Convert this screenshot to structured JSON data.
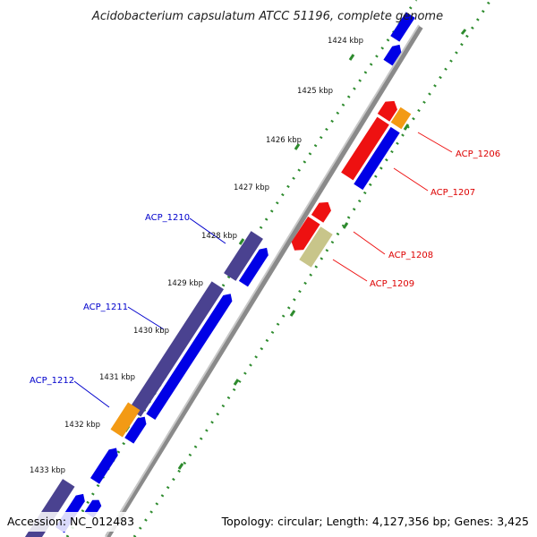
{
  "title": "Acidobacterium capsulatum ATCC 51196, complete genome",
  "footer": {
    "accession": "Accession: NC_012483",
    "summary": "Topology: circular; Length: 4,127,356 bp; Genes: 3,425"
  },
  "colors": {
    "backbone": "#8a8a8a",
    "tick_dots": "#2e8b2e",
    "blue_gene": "#0000e6",
    "purple_gene": "#4a4290",
    "red_gene": "#ee1111",
    "orange_gene": "#f39a14",
    "khaki_gene": "#c8c58a",
    "label_blue": "#0000cc",
    "label_red": "#dd0000"
  },
  "kbp_ticks": [
    "1424 kbp",
    "1425 kbp",
    "1426 kbp",
    "1427 kbp",
    "1428 kbp",
    "1429 kbp",
    "1430 kbp",
    "1431 kbp",
    "1432 kbp",
    "1433 kbp"
  ],
  "gene_labels": {
    "right": [
      "ACP_1206",
      "ACP_1207",
      "ACP_1208",
      "ACP_1209"
    ],
    "left": [
      "ACP_1210",
      "ACP_1211",
      "ACP_1212"
    ]
  }
}
